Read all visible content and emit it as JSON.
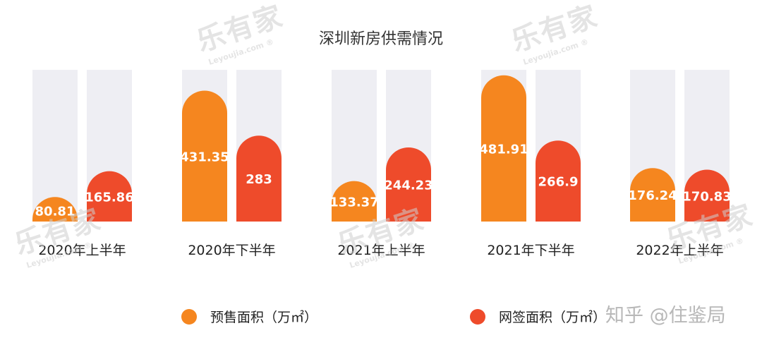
{
  "chart_data": {
    "type": "bar",
    "title": "深圳新房供需情况",
    "categories": [
      "2020年上半年",
      "2020年下半年",
      "2021年上半年",
      "2021年下半年",
      "2022年上半年"
    ],
    "series": [
      {
        "name": "预售面积（万㎡）",
        "color": "#F5861F",
        "values": [
          80.81,
          431.35,
          133.37,
          481.91,
          176.24
        ]
      },
      {
        "name": "网签面积（万㎡）",
        "color": "#EE4B2B",
        "values": [
          165.86,
          283,
          244.23,
          266.9,
          170.83
        ]
      }
    ],
    "ylim": [
      0,
      500
    ],
    "track_color": "#EEEEF3",
    "legend_position": "bottom",
    "value_labels": [
      "80.81",
      "165.86",
      "431.35",
      "283",
      "133.37",
      "244.23",
      "481.91",
      "266.9",
      "176.24",
      "170.83"
    ]
  },
  "watermark": {
    "brand": "乐有家",
    "url": "Leyoujia.com",
    "mark": "®",
    "zhihu": "知乎 @住鉴局"
  }
}
